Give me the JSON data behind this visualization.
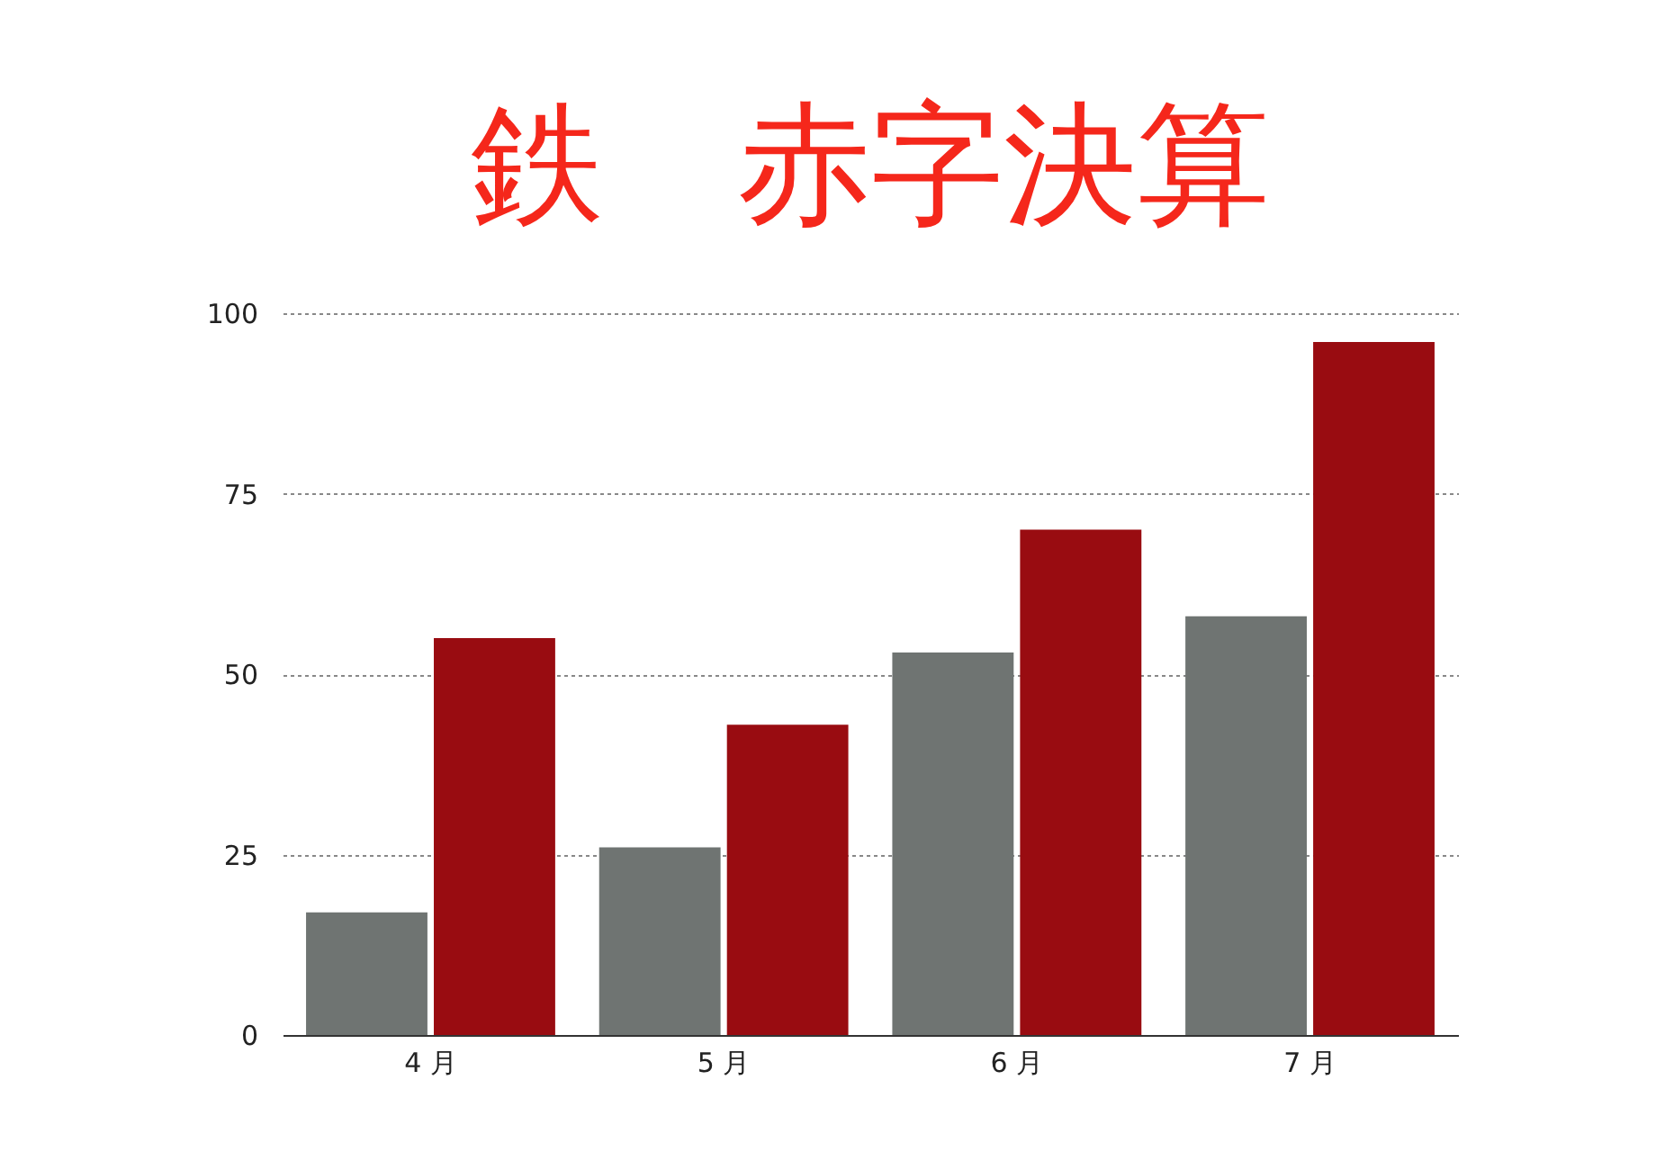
{
  "chart_data": {
    "type": "bar",
    "title": "鉄　赤字決算",
    "categories": [
      "4 月",
      "5 月",
      "6 月",
      "7 月"
    ],
    "series": [
      {
        "color": "#6f7472",
        "values": [
          17,
          26,
          53,
          58
        ]
      },
      {
        "color": "#990c11",
        "values": [
          55,
          43,
          70,
          96
        ]
      }
    ],
    "ylim": [
      0,
      100
    ],
    "yticks": [
      0,
      25,
      50,
      75,
      100
    ],
    "grid": "y",
    "legend": false
  }
}
